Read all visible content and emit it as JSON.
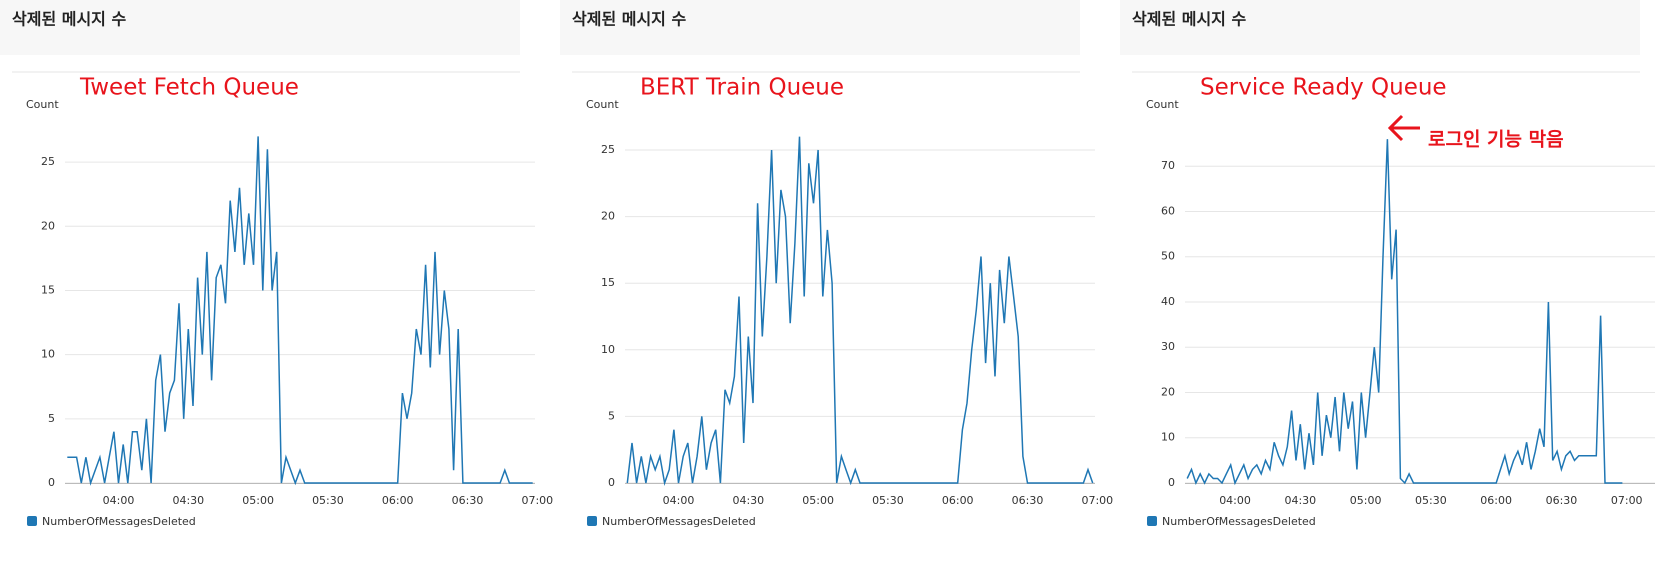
{
  "chart_data": [
    {
      "type": "line",
      "title": "삭제된 메시지 수",
      "annotations": [
        "Tweet Fetch Queue"
      ],
      "y_label": "Count",
      "x": [
        "03:38",
        "03:40",
        "03:42",
        "03:44",
        "03:46",
        "03:48",
        "03:50",
        "03:52",
        "03:54",
        "03:56",
        "03:58",
        "04:00",
        "04:02",
        "04:04",
        "04:06",
        "04:08",
        "04:10",
        "04:12",
        "04:14",
        "04:16",
        "04:18",
        "04:20",
        "04:22",
        "04:24",
        "04:26",
        "04:28",
        "04:30",
        "04:32",
        "04:34",
        "04:36",
        "04:38",
        "04:40",
        "04:42",
        "04:44",
        "04:46",
        "04:48",
        "04:50",
        "04:52",
        "04:54",
        "04:56",
        "04:58",
        "05:00",
        "05:02",
        "05:04",
        "05:06",
        "05:08",
        "05:10",
        "05:12",
        "05:14",
        "05:16",
        "05:18",
        "05:20",
        "05:22",
        "05:24",
        "05:26",
        "05:28",
        "05:30",
        "05:32",
        "05:34",
        "05:36",
        "05:38",
        "05:40",
        "05:42",
        "05:44",
        "05:46",
        "05:48",
        "05:50",
        "05:52",
        "05:54",
        "05:56",
        "05:58",
        "06:00",
        "06:02",
        "06:04",
        "06:06",
        "06:08",
        "06:10",
        "06:12",
        "06:14",
        "06:16",
        "06:18",
        "06:20",
        "06:22",
        "06:24",
        "06:26",
        "06:28",
        "06:30",
        "06:32",
        "06:34",
        "06:36",
        "06:38",
        "06:40",
        "06:42",
        "06:44",
        "06:46",
        "06:48",
        "06:50",
        "06:52",
        "06:54",
        "06:56",
        "06:58"
      ],
      "xlim": [
        "03:37",
        "06:59"
      ],
      "xticks": [
        "04:00",
        "04:30",
        "05:00",
        "05:30",
        "06:00",
        "06:30",
        "07:00"
      ],
      "ylim": [
        0,
        27.5
      ],
      "yticks": [
        0,
        5,
        10,
        15,
        20,
        25
      ],
      "grid": true,
      "series": [
        {
          "name": "NumberOfMessagesDeleted",
          "color": "#1f77b4",
          "values": [
            2,
            2,
            2,
            0,
            2,
            0,
            1,
            2,
            0,
            2,
            4,
            0,
            3,
            0,
            4,
            4,
            1,
            5,
            0,
            8,
            10,
            4,
            7,
            8,
            14,
            5,
            12,
            6,
            16,
            10,
            18,
            8,
            16,
            17,
            14,
            22,
            18,
            23,
            17,
            21,
            17,
            27,
            15,
            26,
            15,
            18,
            0,
            2,
            1,
            0,
            1,
            0,
            0,
            0,
            0,
            0,
            0,
            0,
            0,
            0,
            0,
            0,
            0,
            0,
            0,
            0,
            0,
            0,
            0,
            0,
            0,
            0,
            7,
            5,
            7,
            12,
            10,
            17,
            9,
            18,
            10,
            15,
            12,
            1,
            12,
            0,
            0,
            0,
            0,
            0,
            0,
            0,
            0,
            0,
            1,
            0,
            0,
            0,
            0,
            0,
            0
          ]
        }
      ]
    },
    {
      "type": "line",
      "title": "삭제된 메시지 수",
      "annotations": [
        "BERT Train Queue"
      ],
      "y_label": "Count",
      "x": [
        "03:38",
        "03:40",
        "03:42",
        "03:44",
        "03:46",
        "03:48",
        "03:50",
        "03:52",
        "03:54",
        "03:56",
        "03:58",
        "04:00",
        "04:02",
        "04:04",
        "04:06",
        "04:08",
        "04:10",
        "04:12",
        "04:14",
        "04:16",
        "04:18",
        "04:20",
        "04:22",
        "04:24",
        "04:26",
        "04:28",
        "04:30",
        "04:32",
        "04:34",
        "04:36",
        "04:38",
        "04:40",
        "04:42",
        "04:44",
        "04:46",
        "04:48",
        "04:50",
        "04:52",
        "04:54",
        "04:56",
        "04:58",
        "05:00",
        "05:02",
        "05:04",
        "05:06",
        "05:08",
        "05:10",
        "05:12",
        "05:14",
        "05:16",
        "05:18",
        "05:20",
        "05:22",
        "05:24",
        "05:26",
        "05:28",
        "05:30",
        "05:32",
        "05:34",
        "05:36",
        "05:38",
        "05:40",
        "05:42",
        "05:44",
        "05:46",
        "05:48",
        "05:50",
        "05:52",
        "05:54",
        "05:56",
        "05:58",
        "06:00",
        "06:02",
        "06:04",
        "06:06",
        "06:08",
        "06:10",
        "06:12",
        "06:14",
        "06:16",
        "06:18",
        "06:20",
        "06:22",
        "06:24",
        "06:26",
        "06:28",
        "06:30",
        "06:32",
        "06:34",
        "06:36",
        "06:38",
        "06:40",
        "06:42",
        "06:44",
        "06:46",
        "06:48",
        "06:50",
        "06:52",
        "06:54",
        "06:56",
        "06:58"
      ],
      "xlim": [
        "03:37",
        "06:59"
      ],
      "xticks": [
        "04:00",
        "04:30",
        "05:00",
        "05:30",
        "06:00",
        "06:30",
        "07:00"
      ],
      "ylim": [
        0,
        26.5
      ],
      "yticks": [
        0,
        5,
        10,
        15,
        20,
        25
      ],
      "grid": true,
      "series": [
        {
          "name": "NumberOfMessagesDeleted",
          "color": "#1f77b4",
          "values": [
            0,
            3,
            0,
            2,
            0,
            2,
            1,
            2,
            0,
            1,
            4,
            0,
            2,
            3,
            0,
            2,
            5,
            1,
            3,
            4,
            0,
            7,
            6,
            8,
            14,
            3,
            11,
            6,
            21,
            11,
            17,
            25,
            15,
            22,
            20,
            12,
            18,
            26,
            14,
            24,
            21,
            25,
            14,
            19,
            15,
            0,
            2,
            1,
            0,
            1,
            0,
            0,
            0,
            0,
            0,
            0,
            0,
            0,
            0,
            0,
            0,
            0,
            0,
            0,
            0,
            0,
            0,
            0,
            0,
            0,
            0,
            0,
            4,
            6,
            10,
            13,
            17,
            9,
            15,
            8,
            16,
            12,
            17,
            14,
            11,
            2,
            0,
            0,
            0,
            0,
            0,
            0,
            0,
            0,
            0,
            0,
            0,
            0,
            0,
            1,
            0
          ]
        }
      ]
    },
    {
      "type": "line",
      "title": "삭제된 메시지 수",
      "annotations": [
        "Service Ready Queue",
        "로그인 기능 막음"
      ],
      "y_label": "Count",
      "x": [
        "03:38",
        "03:40",
        "03:42",
        "03:44",
        "03:46",
        "03:48",
        "03:50",
        "03:52",
        "03:54",
        "03:56",
        "03:58",
        "04:00",
        "04:02",
        "04:04",
        "04:06",
        "04:08",
        "04:10",
        "04:12",
        "04:14",
        "04:16",
        "04:18",
        "04:20",
        "04:22",
        "04:24",
        "04:26",
        "04:28",
        "04:30",
        "04:32",
        "04:34",
        "04:36",
        "04:38",
        "04:40",
        "04:42",
        "04:44",
        "04:46",
        "04:48",
        "04:50",
        "04:52",
        "04:54",
        "04:56",
        "04:58",
        "05:00",
        "05:02",
        "05:04",
        "05:06",
        "05:08",
        "05:10",
        "05:12",
        "05:14",
        "05:16",
        "05:18",
        "05:20",
        "05:22",
        "05:24",
        "05:26",
        "05:28",
        "05:30",
        "05:32",
        "05:34",
        "05:36",
        "05:38",
        "05:40",
        "05:42",
        "05:44",
        "05:46",
        "05:48",
        "05:50",
        "05:52",
        "05:54",
        "05:56",
        "05:58",
        "06:00",
        "06:02",
        "06:04",
        "06:06",
        "06:08",
        "06:10",
        "06:12",
        "06:14",
        "06:16",
        "06:18",
        "06:20",
        "06:22",
        "06:24",
        "06:26",
        "06:28",
        "06:30",
        "06:32",
        "06:34",
        "06:36",
        "06:38",
        "06:40",
        "06:42",
        "06:44",
        "06:46",
        "06:48",
        "06:50",
        "06:52",
        "06:54",
        "06:56",
        "06:58"
      ],
      "xlim": [
        "03:37",
        "07:13"
      ],
      "xticks": [
        "04:00",
        "04:30",
        "05:00",
        "05:30",
        "06:00",
        "06:30",
        "07:00"
      ],
      "ylim": [
        0,
        78
      ],
      "yticks": [
        0,
        10,
        20,
        30,
        40,
        50,
        60,
        70
      ],
      "grid": true,
      "series": [
        {
          "name": "NumberOfMessagesDeleted",
          "color": "#1f77b4",
          "values": [
            1,
            3,
            0,
            2,
            0,
            2,
            1,
            1,
            0,
            2,
            4,
            0,
            2,
            4,
            1,
            3,
            4,
            2,
            5,
            3,
            9,
            6,
            4,
            8,
            16,
            5,
            13,
            3,
            11,
            4,
            20,
            6,
            15,
            10,
            19,
            7,
            20,
            12,
            18,
            3,
            20,
            10,
            20,
            30,
            20,
            50,
            76,
            45,
            56,
            1,
            0,
            2,
            0,
            0,
            0,
            0,
            0,
            0,
            0,
            0,
            0,
            0,
            0,
            0,
            0,
            0,
            0,
            0,
            0,
            0,
            0,
            0,
            3,
            6,
            2,
            5,
            7,
            4,
            9,
            3,
            7,
            12,
            8,
            40,
            5,
            7,
            3,
            6,
            7,
            5,
            6,
            6,
            6,
            6,
            6,
            37,
            0,
            0,
            0,
            0,
            0
          ]
        }
      ]
    }
  ]
}
